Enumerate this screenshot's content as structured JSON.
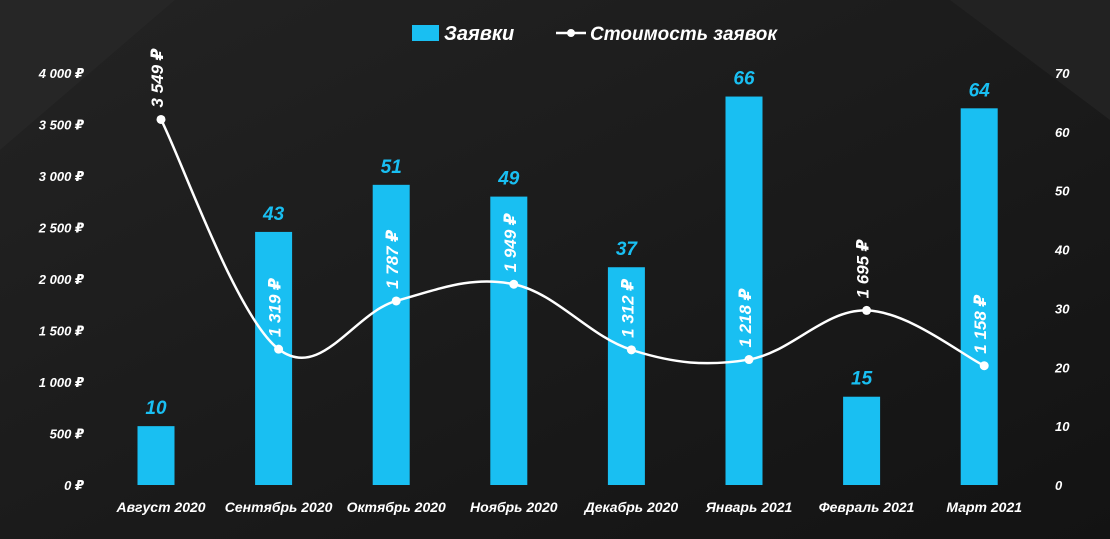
{
  "colors": {
    "background": "#1a1a1a",
    "bar": "#19bff2",
    "line": "#ffffff",
    "bar_label": "#19bff2",
    "line_label": "#ffffff"
  },
  "legend": {
    "bar_label": "Заявки",
    "line_label": "Стоимость заявок",
    "placement": "top-center"
  },
  "chart_data": {
    "type": "bar+line",
    "title": "",
    "categories": [
      "Август 2020",
      "Сентябрь 2020",
      "Октябрь 2020",
      "Ноябрь 2020",
      "Декабрь 2020",
      "Январь 2021",
      "Февраль 2021",
      "Март 2021"
    ],
    "series": [
      {
        "name": "Заявки",
        "type": "bar",
        "axis": "right",
        "values": [
          10,
          43,
          51,
          49,
          37,
          66,
          15,
          64
        ],
        "labels": [
          "10",
          "43",
          "51",
          "49",
          "37",
          "66",
          "15",
          "64"
        ]
      },
      {
        "name": "Стоимость заявок",
        "type": "line",
        "axis": "left",
        "smooth": true,
        "values": [
          3549,
          1319,
          1787,
          1949,
          1312,
          1218,
          1695,
          1158
        ],
        "labels": [
          "3 549 ₽",
          "1 319 ₽",
          "1 787 ₽",
          "1 949 ₽",
          "1 312 ₽",
          "1 218 ₽",
          "1 695 ₽",
          "1 158 ₽"
        ]
      }
    ],
    "y_left": {
      "range": [
        0,
        4000
      ],
      "ticks": [
        0,
        500,
        1000,
        1500,
        2000,
        2500,
        3000,
        3500,
        4000
      ],
      "tick_labels": [
        "0 ₽",
        "500 ₽",
        "1 000 ₽",
        "1 500 ₽",
        "2 000 ₽",
        "2 500 ₽",
        "3 000 ₽",
        "3 500 ₽",
        "4 000 ₽"
      ]
    },
    "y_right": {
      "range": [
        0,
        70
      ],
      "ticks": [
        0,
        10,
        20,
        30,
        40,
        50,
        60,
        70
      ],
      "tick_labels": [
        "0",
        "10",
        "20",
        "30",
        "40",
        "50",
        "60",
        "70"
      ]
    },
    "grid": false,
    "xlabel": "",
    "ylabel": ""
  }
}
